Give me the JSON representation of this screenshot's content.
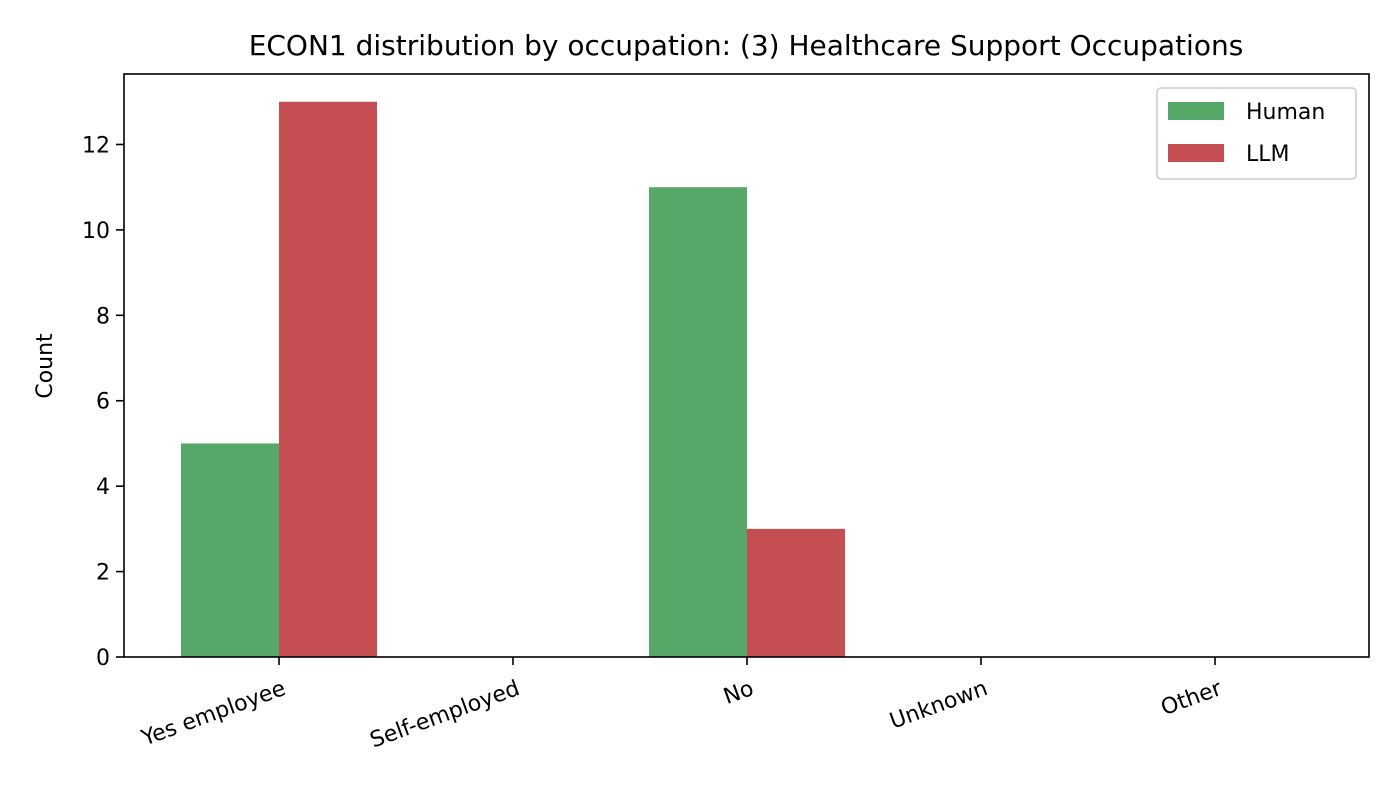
{
  "chart_data": {
    "type": "bar",
    "title": "ECON1 distribution by occupation: (3) Healthcare Support Occupations",
    "xlabel": "",
    "ylabel": "Count",
    "categories": [
      "Yes employee",
      "Self-employed",
      "No",
      "Unknown",
      "Other"
    ],
    "series": [
      {
        "name": "Human",
        "color": "#55a868",
        "values": [
          5,
          0,
          11,
          0,
          0
        ]
      },
      {
        "name": "LLM",
        "color": "#c44e52",
        "values": [
          13,
          0,
          3,
          0,
          0
        ]
      }
    ],
    "ylim": [
      0,
      13.65
    ],
    "yticks": [
      0,
      2,
      4,
      6,
      8,
      10,
      12
    ],
    "grid": false,
    "legend_position": "top-right"
  }
}
